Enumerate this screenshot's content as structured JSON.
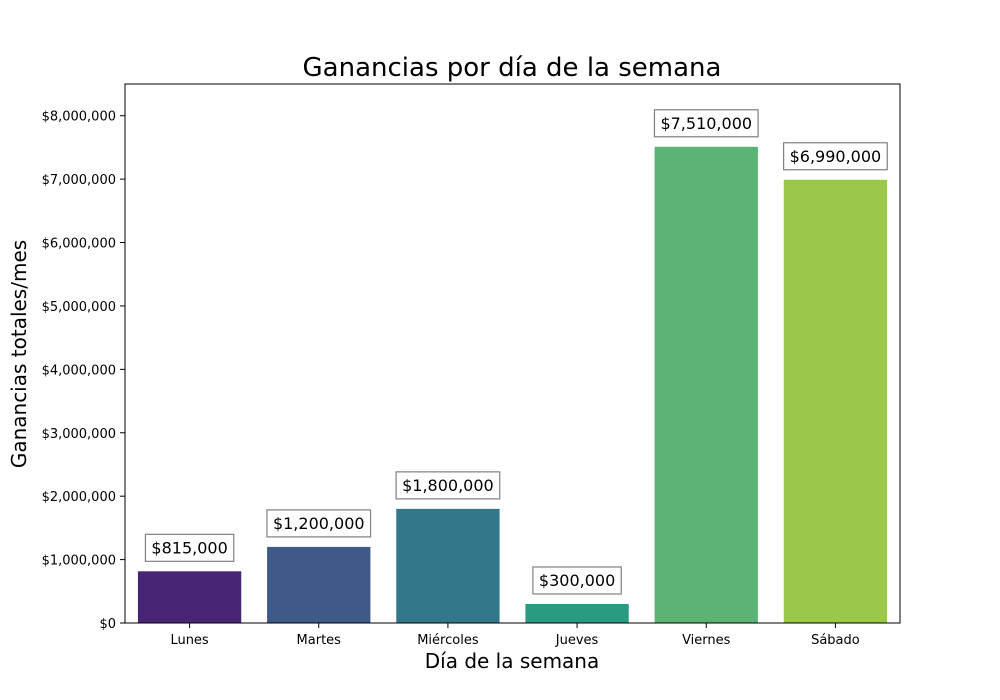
{
  "chart_data": {
    "type": "bar",
    "title": "Ganancias por día de la semana",
    "xlabel": "Día de la semana",
    "ylabel": "Ganancias totales/mes",
    "categories": [
      "Lunes",
      "Martes",
      "Miércoles",
      "Jueves",
      "Viernes",
      "Sábado"
    ],
    "values": [
      815000,
      1200000,
      1800000,
      300000,
      7510000,
      6990000
    ],
    "data_labels": [
      "$815,000",
      "$1,200,000",
      "$1,800,000",
      "$300,000",
      "$7,510,000",
      "$6,990,000"
    ],
    "colors": [
      "#482475",
      "#3f5a87",
      "#33788a",
      "#2a9a81",
      "#5bb374",
      "#9ac84a"
    ],
    "ylim": [
      0,
      8500000
    ],
    "yticks": [
      0,
      1000000,
      2000000,
      3000000,
      4000000,
      5000000,
      6000000,
      7000000,
      8000000
    ],
    "ytick_labels": [
      "$0",
      "$1,000,000",
      "$2,000,000",
      "$3,000,000",
      "$4,000,000",
      "$5,000,000",
      "$6,000,000",
      "$7,000,000",
      "$8,000,000"
    ],
    "grid": false,
    "legend": "none"
  }
}
